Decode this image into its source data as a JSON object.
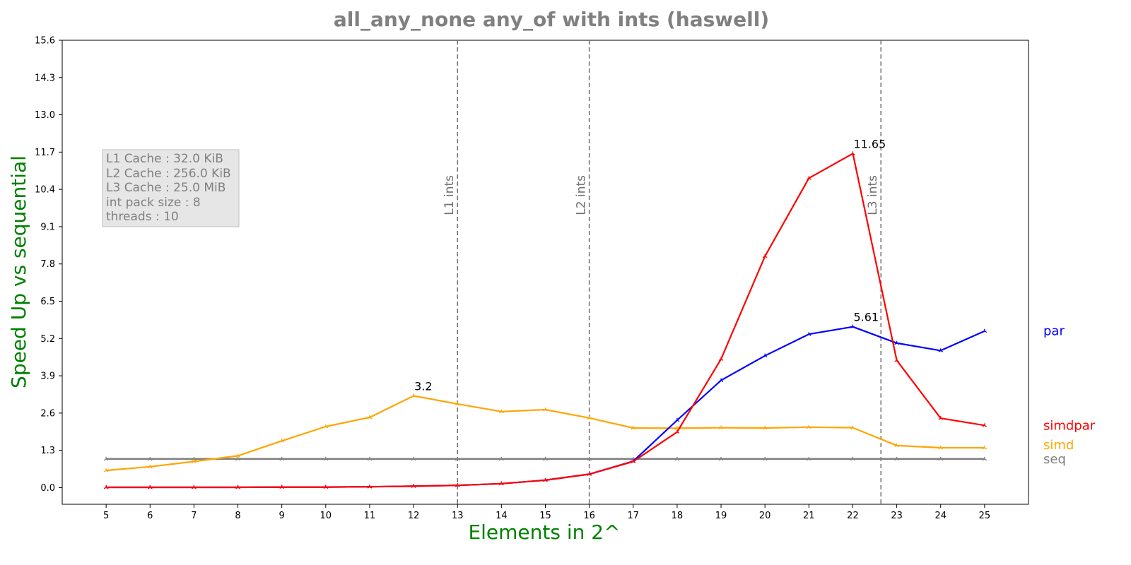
{
  "chart_data": {
    "type": "line",
    "title": "all_any_none any_of with ints  (haswell)",
    "xlabel": "Elements in 2^",
    "ylabel": "Speed Up vs sequential",
    "x": [
      5,
      6,
      7,
      8,
      9,
      10,
      11,
      12,
      13,
      14,
      15,
      16,
      17,
      18,
      19,
      20,
      21,
      22,
      23,
      24,
      25
    ],
    "xlim": [
      4,
      26
    ],
    "ylim": [
      -0.58,
      15.6
    ],
    "yticks": [
      0.0,
      1.3,
      2.6,
      3.9,
      5.2,
      6.5,
      7.8,
      9.1,
      10.4,
      11.7,
      13.0,
      14.3,
      15.6
    ],
    "ytick_labels": [
      "0.0",
      "1.3",
      "2.6",
      "3.9",
      "5.2",
      "6.5",
      "7.8",
      "9.1",
      "10.4",
      "11.7",
      "13.0",
      "14.3",
      "15.6"
    ],
    "xtick_labels": [
      "5",
      "6",
      "7",
      "8",
      "9",
      "10",
      "11",
      "12",
      "13",
      "14",
      "15",
      "16",
      "17",
      "18",
      "19",
      "20",
      "21",
      "22",
      "23",
      "24",
      "25"
    ],
    "grid": false,
    "series": [
      {
        "name": "seq",
        "color": "#808080",
        "values": [
          1,
          1,
          1,
          1,
          1,
          1,
          1,
          1,
          1,
          1,
          1,
          1,
          1,
          1,
          1,
          1,
          1,
          1,
          1,
          1,
          1
        ]
      },
      {
        "name": "simd",
        "color": "#ffa500",
        "values": [
          0.6,
          0.73,
          0.91,
          1.11,
          1.63,
          2.13,
          2.45,
          3.2,
          2.92,
          2.65,
          2.72,
          2.43,
          2.08,
          2.07,
          2.09,
          2.08,
          2.11,
          2.09,
          1.47,
          1.39,
          1.39
        ],
        "peak_label": "3.2",
        "peak_index": 7
      },
      {
        "name": "par",
        "color": "#0000ff",
        "values": [
          0.01,
          0.01,
          0.01,
          0.01,
          0.02,
          0.02,
          0.03,
          0.05,
          0.08,
          0.14,
          0.26,
          0.47,
          0.92,
          2.35,
          3.74,
          4.6,
          5.35,
          5.61,
          5.04,
          4.78,
          5.46
        ],
        "peak_label": "5.61",
        "peak_index": 17
      },
      {
        "name": "simdpar",
        "color": "#ff0000",
        "values": [
          0.01,
          0.01,
          0.01,
          0.01,
          0.02,
          0.02,
          0.03,
          0.05,
          0.08,
          0.14,
          0.26,
          0.47,
          0.91,
          1.94,
          4.48,
          8.07,
          10.79,
          11.65,
          4.44,
          2.42,
          2.17
        ],
        "peak_label": "11.65",
        "peak_index": 17
      }
    ],
    "vlines": [
      {
        "x": 13,
        "label": "L1 ints"
      },
      {
        "x": 16,
        "label": "L2 ints"
      },
      {
        "x": 22.64,
        "label": "L3 ints"
      }
    ],
    "info_box": [
      "L1 Cache : 32.0 KiB",
      "L2 Cache : 256.0 KiB",
      "L3 Cache : 25.0 MiB",
      "int pack size : 8",
      "threads : 10"
    ],
    "legend_placement": "right, outside plot, labels beside line ends"
  },
  "colors": {
    "title": "#808080",
    "axis_label": "#008000",
    "info_text": "#808080",
    "info_bg": "#e6e6e6",
    "vline": "#707070"
  }
}
